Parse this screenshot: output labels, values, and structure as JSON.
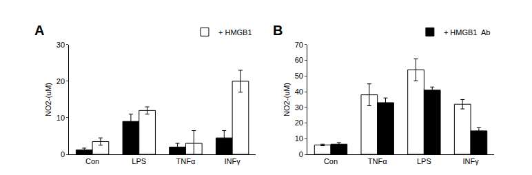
{
  "chart_data": [
    {
      "type": "bar",
      "title": "A",
      "y_label": "NO2-(uM)",
      "categories": [
        "Con",
        "LPS",
        "TNFα",
        "INFγ"
      ],
      "series": [
        {
          "color": "#000000",
          "values": [
            1.2,
            9,
            2,
            4.5
          ],
          "errors": [
            0.5,
            2,
            1,
            2
          ]
        },
        {
          "name": "+ HMGB1",
          "color": "#ffffff",
          "values": [
            3.5,
            12,
            3,
            20
          ],
          "errors": [
            1,
            1,
            3.5,
            3
          ]
        }
      ],
      "ylim": [
        0,
        30
      ],
      "yticks": [
        0,
        10,
        20,
        30
      ],
      "grid": false,
      "legend": "top right"
    },
    {
      "type": "bar",
      "title": "B",
      "y_label": "NO2-(uM)",
      "categories": [
        "Con",
        "TNFα",
        "LPS",
        "INFγ"
      ],
      "series": [
        {
          "color": "#ffffff",
          "values": [
            6,
            38,
            54,
            32
          ],
          "errors": [
            0.5,
            7,
            7,
            3
          ]
        },
        {
          "name": "+ HMGB1  Ab",
          "color": "#000000",
          "values": [
            6.5,
            33,
            41,
            15
          ],
          "errors": [
            1,
            3,
            2,
            2
          ]
        }
      ],
      "ylim": [
        0,
        70
      ],
      "yticks": [
        0,
        10,
        20,
        30,
        40,
        50,
        60,
        70
      ],
      "grid": false,
      "legend": "top right"
    }
  ]
}
